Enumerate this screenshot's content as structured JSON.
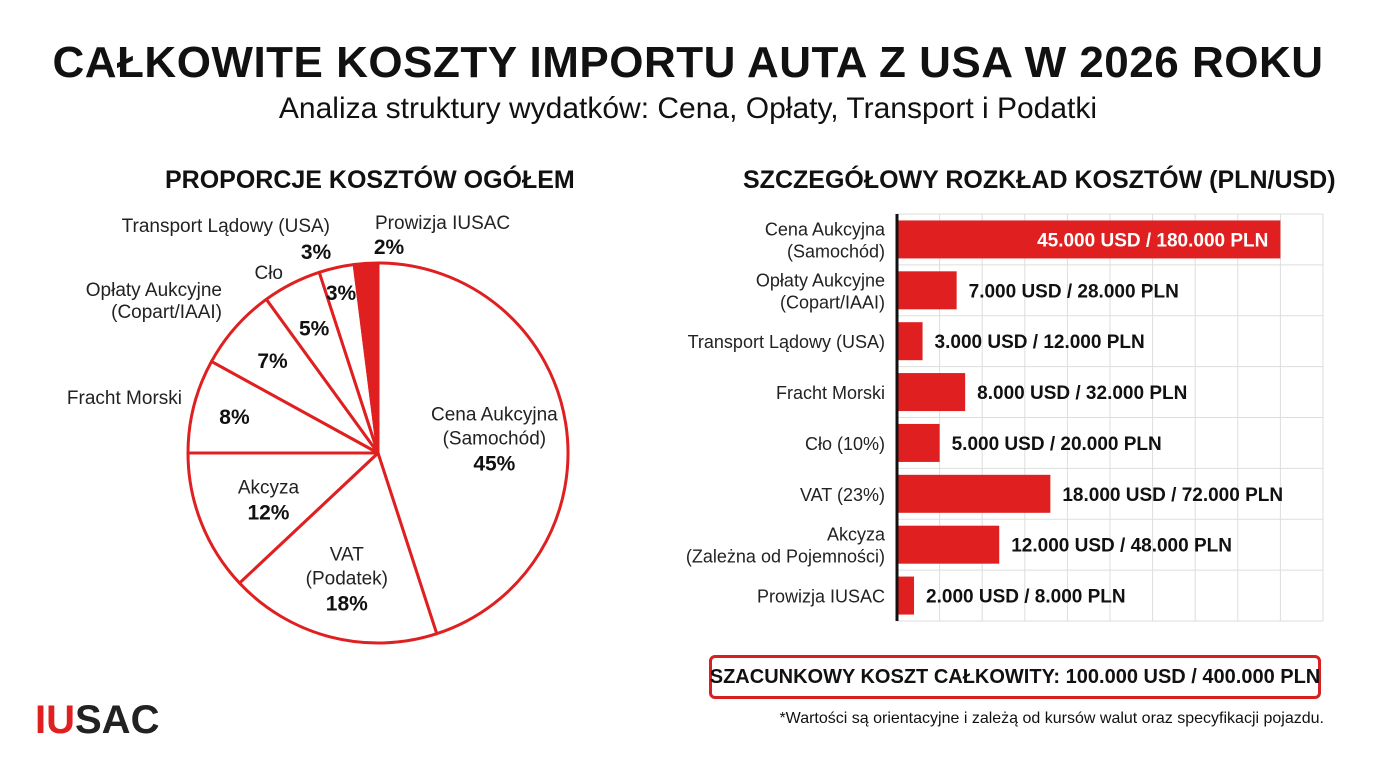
{
  "header": {
    "title": "CAŁKOWITE KOSZTY IMPORTU AUTA Z USA W 2026 ROKU",
    "subtitle": "Analiza struktury wydatków: Cena, Opłaty, Transport i Podatki"
  },
  "colors": {
    "accent": "#e02020",
    "text": "#111111",
    "grid": "#dddddd"
  },
  "chart_data": [
    {
      "type": "pie",
      "title": "PROPORCJE KOSZTÓW OGÓŁEM",
      "slices": [
        {
          "label": [
            "Cena Aukcyjna",
            "(Samochód)"
          ],
          "pct_label": "45%",
          "value": 45,
          "placement": "inside",
          "filled": false
        },
        {
          "label": [
            "VAT",
            "(Podatek)"
          ],
          "pct_label": "18%",
          "value": 18,
          "placement": "inside",
          "filled": false
        },
        {
          "label": [
            "Akcyza"
          ],
          "pct_label": "12%",
          "value": 12,
          "placement": "inside",
          "filled": false
        },
        {
          "label": [
            "Fracht Morski"
          ],
          "pct_label": "8%",
          "value": 8,
          "placement": "outside",
          "filled": false
        },
        {
          "label": [
            "Opłaty Aukcyjne",
            "(Copart/IAAI)"
          ],
          "pct_label": "7%",
          "value": 7,
          "placement": "outside",
          "filled": false
        },
        {
          "label": [
            "Cło"
          ],
          "pct_label": "5%",
          "value": 5,
          "placement": "outside",
          "filled": false
        },
        {
          "label": [
            "Transport Lądowy (USA)"
          ],
          "pct_label": "3%",
          "value": 3,
          "placement": "outside",
          "filled": false
        },
        {
          "label": [
            "Prowizja IUSAC"
          ],
          "pct_label": "2%",
          "value": 2,
          "placement": "outside",
          "filled": true
        }
      ],
      "extra_pct_labels": [
        "3%"
      ]
    },
    {
      "type": "bar",
      "orientation": "horizontal",
      "title": "SZCZEGÓŁOWY ROZKŁAD KOSZTÓW (PLN/USD)",
      "categories": [
        [
          "Cena Aukcyjna",
          "(Samochód)"
        ],
        [
          "Opłaty Aukcyjne",
          "(Copart/IAAI)"
        ],
        [
          "Transport Lądowy (USA)"
        ],
        [
          "Fracht Morski"
        ],
        [
          "Cło (10%)"
        ],
        [
          "VAT (23%)"
        ],
        [
          "Akcyza",
          "(Zależna od Pojemności)"
        ],
        [
          "Prowizja IUSAC"
        ]
      ],
      "values_usd": [
        45000,
        7000,
        3000,
        8000,
        5000,
        18000,
        12000,
        2000
      ],
      "values_pln": [
        180000,
        28000,
        12000,
        32000,
        20000,
        72000,
        48000,
        8000
      ],
      "value_labels": [
        "45.000 USD / 180.000 PLN",
        "7.000 USD / 28.000 PLN",
        "3.000 USD / 12.000 PLN",
        "8.000 USD / 32.000 PLN",
        "5.000 USD / 20.000 PLN",
        "18.000 USD / 72.000 PLN",
        "12.000 USD / 48.000 PLN",
        "2.000 USD / 8.000 PLN"
      ],
      "xlim_usd": [
        0,
        50000
      ],
      "grid": true,
      "first_label_inside": true
    }
  ],
  "summary": {
    "total": "SZACUNKOWY KOSZT CAŁKOWITY: 100.000 USD / 400.000 PLN",
    "footnote": "*Wartości są orientacyjne i zależą od kursów walut oraz specyfikacji pojazdu."
  },
  "logo": {
    "part1": "IU",
    "part2": "SAC"
  }
}
